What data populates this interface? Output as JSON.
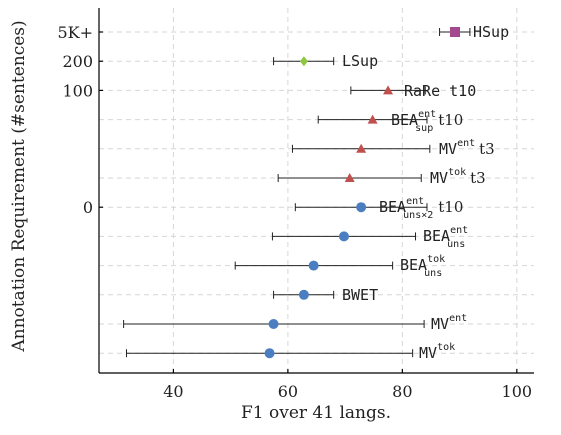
{
  "colors": {
    "blue": "#4a7ec0",
    "red": "#c0504d",
    "green": "#8dc63f",
    "purple": "#a3498d"
  },
  "chart_data": {
    "type": "scatter",
    "subtype": "horizontal-error-bars",
    "xlabel": "F1 over 41 langs.",
    "ylabel": "Annotation Requirement (#sentences)",
    "xlim": [
      27,
      103
    ],
    "xticks": [
      "40",
      "60",
      "80",
      "100"
    ],
    "xtick_values": [
      40,
      60,
      80,
      100
    ],
    "ytick_labels": [
      "5K+",
      "200",
      "100",
      "0"
    ],
    "grid": true,
    "points": [
      {
        "label": "HSup",
        "group": "5K+",
        "marker": "square",
        "color": "purple",
        "mean": 89.2,
        "low": 86.5,
        "high": 91.8
      },
      {
        "label": "LSup",
        "group": "200",
        "marker": "diamond",
        "color": "green",
        "mean": 62.8,
        "low": 57.5,
        "high": 68.0
      },
      {
        "label": "RaRe t10",
        "group": "100",
        "marker": "triangle",
        "color": "red",
        "mean": 77.5,
        "low": 71.0,
        "high": 84.0
      },
      {
        "label": "BEA_sup^ent t10",
        "group": "",
        "marker": "triangle",
        "color": "red",
        "mean": 74.8,
        "low": 65.3,
        "high": 84.3
      },
      {
        "label": "MV^ent t3",
        "group": "",
        "marker": "triangle",
        "color": "red",
        "mean": 72.8,
        "low": 60.8,
        "high": 84.8
      },
      {
        "label": "MV^tok t3",
        "group": "",
        "marker": "triangle",
        "color": "red",
        "mean": 70.8,
        "low": 58.3,
        "high": 83.3
      },
      {
        "label": "BEA_uns×2^ent t10",
        "group": "0",
        "marker": "circle",
        "color": "blue",
        "mean": 72.8,
        "low": 61.3,
        "high": 84.3
      },
      {
        "label": "BEA_uns^ent",
        "group": "",
        "marker": "circle",
        "color": "blue",
        "mean": 69.8,
        "low": 57.3,
        "high": 82.3
      },
      {
        "label": "BEA_uns^tok",
        "group": "",
        "marker": "circle",
        "color": "blue",
        "mean": 64.5,
        "low": 50.8,
        "high": 78.3
      },
      {
        "label": "BWET",
        "group": "",
        "marker": "circle",
        "color": "blue",
        "mean": 62.8,
        "low": 57.5,
        "high": 68.0
      },
      {
        "label": "MV^ent",
        "group": "",
        "marker": "circle",
        "color": "blue",
        "mean": 57.5,
        "low": 31.3,
        "high": 83.8
      },
      {
        "label": "MV^tok",
        "group": "",
        "marker": "circle",
        "color": "blue",
        "mean": 56.8,
        "low": 31.8,
        "high": 81.8
      }
    ],
    "labels": {
      "HSup": "HSup",
      "LSup": "LSup",
      "RaRe": "RaRe t10",
      "BEA": "BEA",
      "MV": "MV",
      "BWET": "BWET",
      "sup": "sup",
      "uns": "uns",
      "uns2": "uns×2",
      "ent": "ent",
      "tok": "tok",
      "t10": "t10",
      "t3": "t3"
    }
  }
}
